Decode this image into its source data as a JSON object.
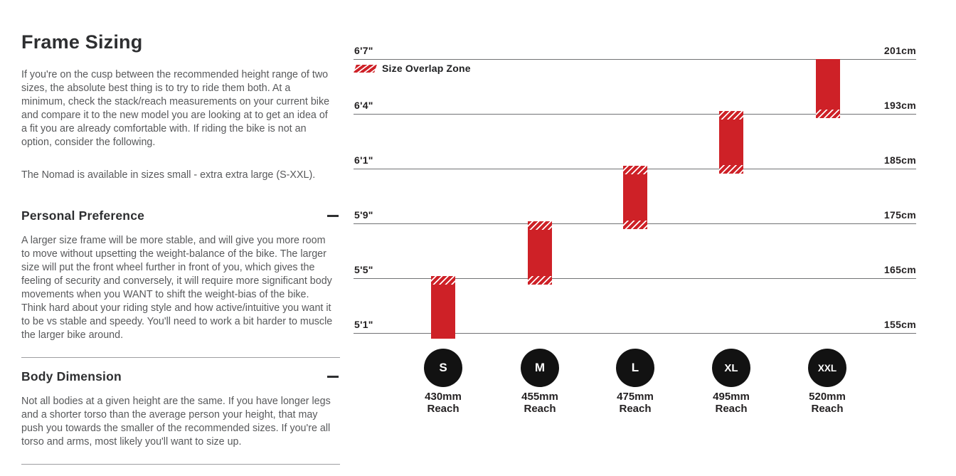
{
  "article": {
    "title": "Frame Sizing",
    "intro": "If you're on the cusp between the recommended height range of two sizes, the absolute best thing is to try to ride them both. At a minimum, check the stack/reach measurements on your current bike and compare it to the new model you are looking at to get an idea of a fit you are already comfortable with. If riding the bike is not an option, consider the following.",
    "availability": "The Nomad is available in sizes small - extra extra large (S-XXL).",
    "sections": [
      {
        "title": "Personal Preference",
        "state": "expanded",
        "toggle_icon": "minus-icon",
        "body": "A larger size frame will be more stable, and will give you more room to move without upsetting the weight-balance of the bike. The larger size will put the front wheel further in front of you, which gives the feeling of security and conversely, it will require more significant body movements when you WANT to shift the weight-bias of the bike. Think hard about your riding style and how active/intuitive you want it to be vs stable and speedy. You'll need to work a bit harder to muscle the larger bike around."
      },
      {
        "title": "Body Dimension",
        "state": "expanded",
        "toggle_icon": "minus-icon",
        "body": "Not all bodies at a given height are the same. If you have longer legs and a shorter torso than the average person your height, that may push you towards the smaller of the recommended sizes. If you're all torso and arms, most likely you'll want to size up."
      }
    ]
  },
  "chart_data": {
    "type": "bar",
    "orientation": "vertical-range-bars",
    "legend_label": "Size Overlap Zone",
    "legend_swatch": "red-diagonal-hatch",
    "grid": "on",
    "gridlines": [
      {
        "ft": "6'7\"",
        "cm": "201cm"
      },
      {
        "ft": "6'4\"",
        "cm": "193cm"
      },
      {
        "ft": "6'1\"",
        "cm": "185cm"
      },
      {
        "ft": "5'9\"",
        "cm": "175cm"
      },
      {
        "ft": "5'5\"",
        "cm": "165cm"
      },
      {
        "ft": "5'1\"",
        "cm": "155cm"
      }
    ],
    "sizes": [
      {
        "label": "S",
        "reach_value": "430mm",
        "reach_label": "Reach",
        "height_min_ft": "5'1\"",
        "height_max_ft": "5'5\"",
        "height_min_cm": 155,
        "height_max_cm": 165,
        "overlap_top": true,
        "overlap_bottom": false
      },
      {
        "label": "M",
        "reach_value": "455mm",
        "reach_label": "Reach",
        "height_min_ft": "5'5\"",
        "height_max_ft": "5'9\"",
        "height_min_cm": 165,
        "height_max_cm": 175,
        "overlap_top": true,
        "overlap_bottom": true
      },
      {
        "label": "L",
        "reach_value": "475mm",
        "reach_label": "Reach",
        "height_min_ft": "5'9\"",
        "height_max_ft": "6'1\"",
        "height_min_cm": 175,
        "height_max_cm": 185,
        "overlap_top": true,
        "overlap_bottom": true
      },
      {
        "label": "XL",
        "reach_value": "495mm",
        "reach_label": "Reach",
        "height_min_ft": "6'1\"",
        "height_max_ft": "6'4\"",
        "height_min_cm": 185,
        "height_max_cm": 193,
        "overlap_top": true,
        "overlap_bottom": true
      },
      {
        "label": "XXL",
        "reach_value": "520mm",
        "reach_label": "Reach",
        "height_min_ft": "6'4\"",
        "height_max_ft": "6'7\"",
        "height_min_cm": 193,
        "height_max_cm": 201,
        "overlap_top": false,
        "overlap_bottom": true
      }
    ],
    "colors": {
      "bar": "#ce2127",
      "hatch_stripes": "#ffffff",
      "gridline": "#717274",
      "circle": "#121212",
      "text": "#242122"
    }
  }
}
